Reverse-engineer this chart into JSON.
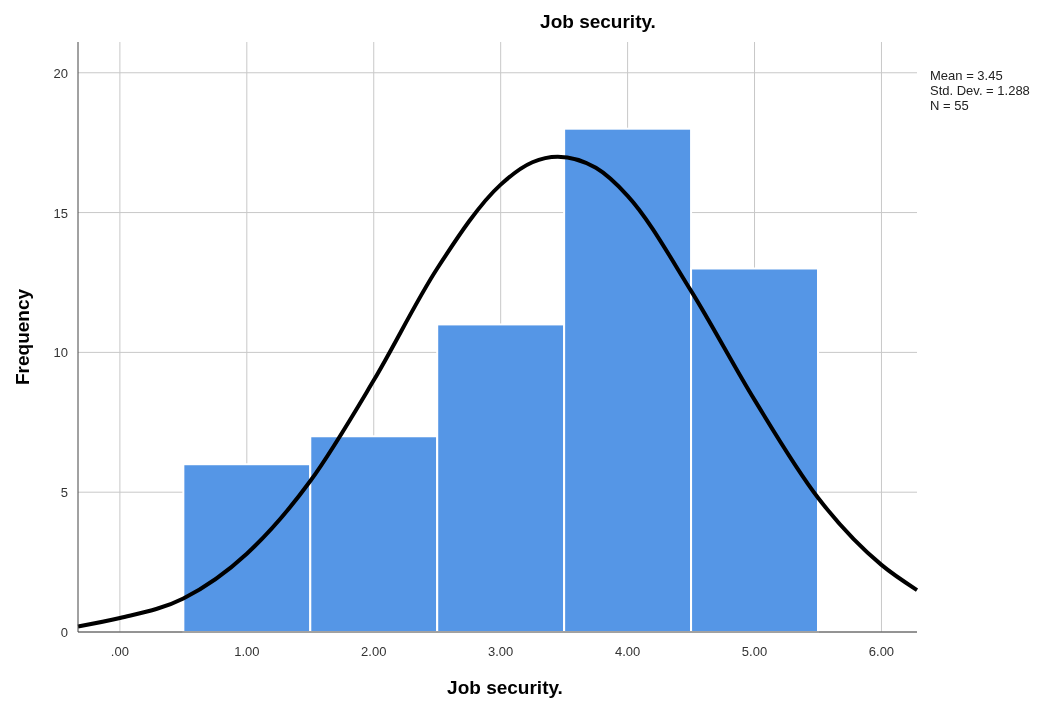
{
  "chart_data": {
    "type": "histogram",
    "title": "Job security.",
    "xlabel": "Job security.",
    "ylabel": "Frequency",
    "bins": [
      0.5,
      1.5,
      2.5,
      3.5,
      4.5,
      5.5
    ],
    "values": [
      6,
      7,
      11,
      18,
      13
    ],
    "color": "#5596e6",
    "series": [
      {
        "type": "line",
        "color": "#000000",
        "x": [
          -0.33,
          0,
          0.5,
          1,
          1.5,
          2,
          2.5,
          3,
          3.25,
          3.45,
          3.75,
          4,
          4.5,
          5,
          5.5,
          6,
          6.28
        ],
        "values": [
          0.2,
          0.5,
          1.2,
          2.8,
          5.4,
          9.0,
          13.0,
          16.0,
          16.8,
          17.0,
          16.6,
          15.6,
          12.2,
          8.3,
          4.8,
          2.4,
          1.5
        ]
      }
    ],
    "xlim": [
      -0.33,
      6.28
    ],
    "xticks": [
      {
        "value": 0,
        "label": ".00"
      },
      {
        "value": 1,
        "label": "1.00"
      },
      {
        "value": 2,
        "label": "2.00"
      },
      {
        "value": 3,
        "label": "3.00"
      },
      {
        "value": 4,
        "label": "4.00"
      },
      {
        "value": 5,
        "label": "5.00"
      },
      {
        "value": 6,
        "label": "6.00"
      }
    ],
    "ylim": [
      0,
      21.1
    ],
    "yticks": [
      0,
      5,
      10,
      15,
      20
    ],
    "grid": true,
    "annotations": [
      "Mean = 3.45",
      "Std. Dev. = 1.288",
      "N = 55"
    ]
  }
}
